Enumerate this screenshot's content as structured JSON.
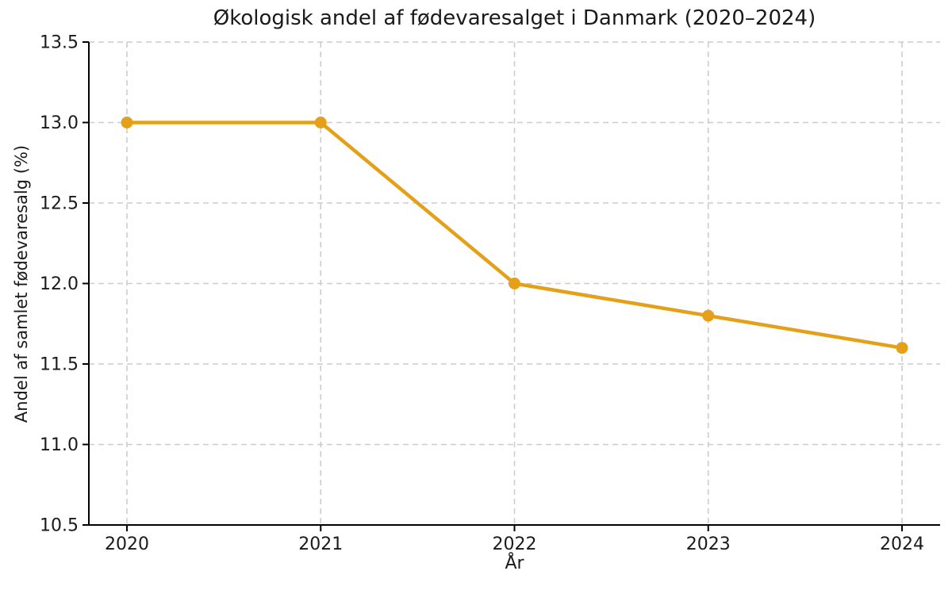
{
  "chart_data": {
    "type": "line",
    "title": "Økologisk andel af fødevaresalget i Danmark (2020–2024)",
    "xlabel": "År",
    "ylabel": "Andel af samlet fødevaresalg (%)",
    "x": [
      2020,
      2021,
      2022,
      2023,
      2024
    ],
    "values": [
      13.0,
      13.0,
      12.0,
      11.8,
      11.6
    ],
    "xticks": [
      2020,
      2021,
      2022,
      2023,
      2024
    ],
    "yticks": [
      10.5,
      11.0,
      11.5,
      12.0,
      12.5,
      13.0,
      13.5
    ],
    "ylim": [
      10.5,
      13.5
    ],
    "grid": true,
    "legend": "none",
    "colors": {
      "line": "#E5A01A",
      "marker": "#E5A01A",
      "grid": "#cccccc",
      "spine": "#000000",
      "text": "#1a1a1a",
      "background": "#ffffff"
    }
  }
}
